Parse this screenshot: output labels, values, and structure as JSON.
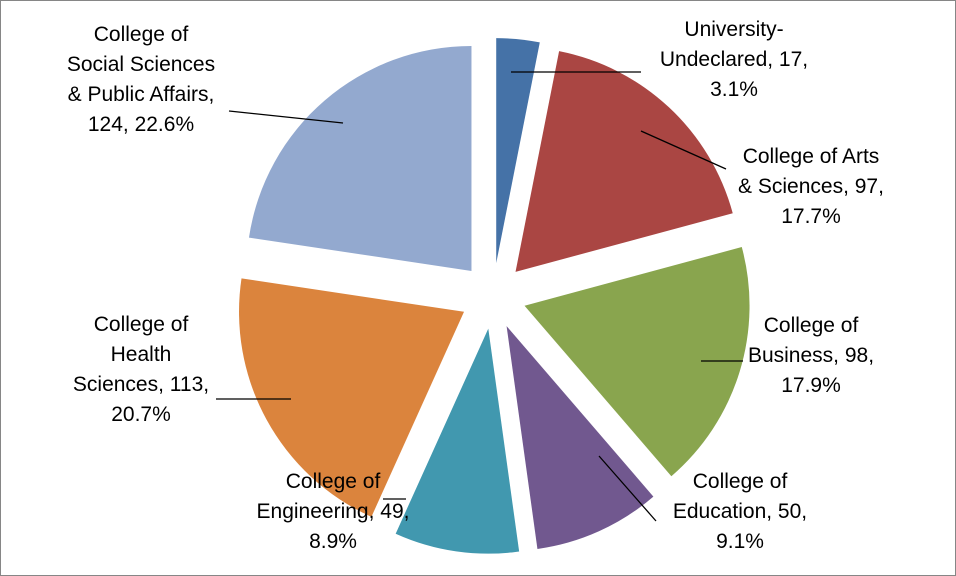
{
  "chart_data": {
    "type": "pie",
    "exploded": true,
    "title": "",
    "legend": "none",
    "categories": [
      "University-Undeclared",
      "College of Arts & Sciences",
      "College of Business",
      "College of Education",
      "College of Engineering",
      "College of Health Sciences",
      "College of Social Sciences & Public Affairs"
    ],
    "values": [
      17,
      97,
      98,
      50,
      49,
      113,
      124
    ],
    "percentages": [
      "3.1%",
      "17.7%",
      "17.9%",
      "9.1%",
      "8.9%",
      "20.7%",
      "22.6%"
    ],
    "colors": [
      "#4572A7",
      "#AA4643",
      "#89A54E",
      "#71588F",
      "#4198AF",
      "#DB843D",
      "#93A9CF"
    ],
    "labels": [
      [
        "University-",
        "Undeclared, 17,",
        "3.1%"
      ],
      [
        "College of Arts",
        "& Sciences, 97,",
        "17.7%"
      ],
      [
        "College of",
        "Business, 98,",
        "17.9%"
      ],
      [
        "College of",
        "Education, 50,",
        "9.1%"
      ],
      [
        "College of",
        "Engineering, 49,",
        "8.9%"
      ],
      [
        "College of",
        "Health",
        "Sciences, 113,",
        "20.7%"
      ],
      [
        "College of",
        "Social Sciences",
        "& Public Affairs,",
        "124, 22.6%"
      ]
    ]
  }
}
